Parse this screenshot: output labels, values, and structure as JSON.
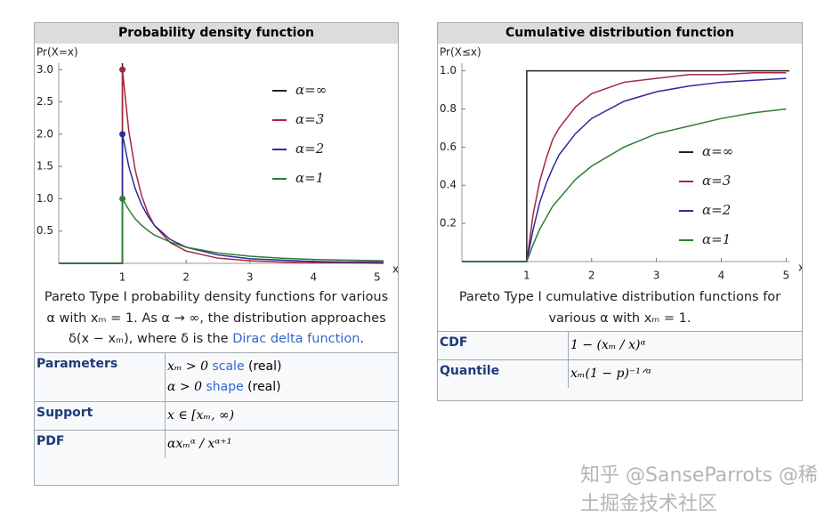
{
  "panels": [
    {
      "title": "Probability density function",
      "chart": {
        "type": "line",
        "ylabel": "Pr(X=x)",
        "xlabel": "x",
        "xlim": [
          0,
          5.1
        ],
        "ylim": [
          0,
          3.1
        ],
        "xticks": [
          1,
          2,
          3,
          4,
          5
        ],
        "yticks": [
          0.5,
          {
            "value": 1,
            "label": "1.0"
          },
          1.5,
          {
            "value": 2,
            "label": "2.0"
          },
          2.5,
          {
            "value": 3,
            "label": "3.0"
          }
        ],
        "series": [
          {
            "name": "α=∞",
            "color": "#222222",
            "markers": false,
            "x": [
              0,
              1,
              1
            ],
            "values": [
              0,
              0,
              3.1
            ]
          },
          {
            "name": "α=3",
            "color": "#a3263e",
            "markers": true,
            "x": [
              0,
              1,
              1,
              1.1,
              1.2,
              1.3,
              1.4,
              1.5,
              1.75,
              2,
              2.5,
              3,
              3.5,
              4,
              4.5,
              5.1
            ],
            "values": [
              0,
              0,
              3,
              2.05,
              1.45,
              1.05,
              0.78,
              0.59,
              0.32,
              0.19,
              0.08,
              0.04,
              0.02,
              0.01,
              0.01,
              0
            ]
          },
          {
            "name": "α=2",
            "color": "#2d2b9e",
            "markers": true,
            "x": [
              0,
              1,
              1,
              1.1,
              1.2,
              1.3,
              1.4,
              1.5,
              1.75,
              2,
              2.5,
              3,
              3.5,
              4,
              4.5,
              5.1
            ],
            "values": [
              0,
              0,
              2,
              1.5,
              1.16,
              0.91,
              0.73,
              0.59,
              0.37,
              0.25,
              0.13,
              0.07,
              0.05,
              0.03,
              0.02,
              0.02
            ]
          },
          {
            "name": "α=1",
            "color": "#2f7d32",
            "markers": true,
            "x": [
              0,
              1,
              1,
              1.1,
              1.2,
              1.3,
              1.4,
              1.5,
              1.75,
              2,
              2.5,
              3,
              3.5,
              4,
              4.5,
              5.1
            ],
            "values": [
              0,
              0,
              1,
              0.83,
              0.69,
              0.59,
              0.51,
              0.44,
              0.33,
              0.25,
              0.16,
              0.11,
              0.08,
              0.06,
              0.05,
              0.04
            ]
          }
        ]
      },
      "caption": {
        "text": "Pareto Type I probability density functions for various α with xₘ = 1. As α → ∞, the distribution approaches δ(x − xₘ), where δ is the",
        "link": "Dirac delta function",
        "end": "."
      },
      "rows": [
        {
          "label": "Parameters",
          "lines": [
            {
              "math": "xₘ > 0",
              "link": "scale",
              "note": "(real)"
            },
            {
              "math": "α > 0",
              "link": "shape",
              "note": "(real)"
            }
          ]
        },
        {
          "label": "Support",
          "lines": [
            {
              "math": "x ∈ [xₘ, ∞)"
            }
          ]
        },
        {
          "label": "PDF",
          "lines": [
            {
              "math": "αxₘᵅ / xᵅ⁺¹"
            }
          ]
        }
      ]
    },
    {
      "title": "Cumulative distribution function",
      "chart": {
        "type": "line",
        "ylabel": "Pr(X≤x)",
        "xlabel": "x",
        "xlim": [
          0,
          5.05
        ],
        "ylim": [
          0,
          1.04
        ],
        "xticks": [
          1,
          2,
          3,
          4,
          5
        ],
        "yticks": [
          0.2,
          0.4,
          0.6,
          0.8,
          {
            "value": 1,
            "label": "1.0"
          }
        ],
        "series": [
          {
            "name": "α=∞",
            "color": "#222222",
            "markers": false,
            "x": [
              0,
              1,
              1,
              5.05
            ],
            "values": [
              0,
              0,
              1,
              1
            ]
          },
          {
            "name": "α=3",
            "color": "#a3263e",
            "markers": false,
            "x": [
              0,
              1,
              1.1,
              1.2,
              1.3,
              1.4,
              1.5,
              1.75,
              2,
              2.5,
              3,
              3.5,
              4,
              4.5,
              5
            ],
            "values": [
              0,
              0,
              0.25,
              0.42,
              0.54,
              0.64,
              0.7,
              0.81,
              0.88,
              0.94,
              0.96,
              0.98,
              0.98,
              0.99,
              0.99
            ]
          },
          {
            "name": "α=2",
            "color": "#2d2b9e",
            "markers": false,
            "x": [
              0,
              1,
              1.1,
              1.2,
              1.3,
              1.4,
              1.5,
              1.75,
              2,
              2.5,
              3,
              3.5,
              4,
              4.5,
              5
            ],
            "values": [
              0,
              0,
              0.17,
              0.31,
              0.41,
              0.49,
              0.56,
              0.67,
              0.75,
              0.84,
              0.89,
              0.92,
              0.94,
              0.95,
              0.96
            ]
          },
          {
            "name": "α=1",
            "color": "#2f7d32",
            "markers": false,
            "x": [
              0,
              1,
              1.1,
              1.2,
              1.3,
              1.4,
              1.5,
              1.75,
              2,
              2.5,
              3,
              3.5,
              4,
              4.5,
              5
            ],
            "values": [
              0,
              0,
              0.09,
              0.17,
              0.23,
              0.29,
              0.33,
              0.43,
              0.5,
              0.6,
              0.67,
              0.71,
              0.75,
              0.78,
              0.8
            ]
          }
        ]
      },
      "caption": {
        "text": "Pareto Type I cumulative distribution functions for various α with xₘ = 1."
      },
      "rows": [
        {
          "label": "CDF",
          "lines": [
            {
              "math": "1 − (xₘ / x)ᵅ"
            }
          ]
        },
        {
          "label": "Quantile",
          "lines": [
            {
              "math": "xₘ(1 − p)⁻¹ᐟᵅ"
            }
          ]
        }
      ]
    }
  ],
  "watermark": "知乎 @SanseParrots @稀土掘金技术社区"
}
